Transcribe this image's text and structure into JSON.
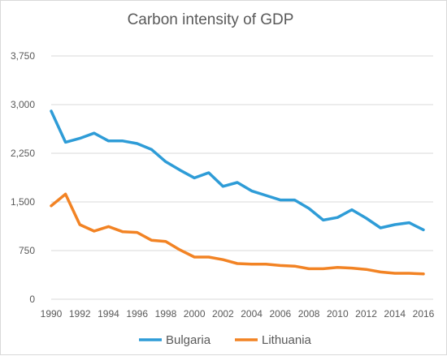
{
  "chart_data": {
    "type": "line",
    "title": "Carbon intensity of GDP",
    "xlabel": "",
    "ylabel": "",
    "x": [
      1990,
      1991,
      1992,
      1993,
      1994,
      1995,
      1996,
      1997,
      1998,
      1999,
      2000,
      2001,
      2002,
      2003,
      2004,
      2005,
      2006,
      2007,
      2008,
      2009,
      2010,
      2011,
      2012,
      2013,
      2014,
      2015,
      2016
    ],
    "x_tick_labels": [
      "1990",
      "1992",
      "1994",
      "1996",
      "1998",
      "2000",
      "2002",
      "2004",
      "2006",
      "2008",
      "2010",
      "2012",
      "2014",
      "2016"
    ],
    "x_tick_values": [
      1990,
      1992,
      1994,
      1996,
      1998,
      2000,
      2002,
      2004,
      2006,
      2008,
      2010,
      2012,
      2014,
      2016
    ],
    "y_tick_labels": [
      "0",
      "750",
      "1,500",
      "2,250",
      "3,000",
      "3,750"
    ],
    "y_tick_values": [
      0,
      750,
      1500,
      2250,
      3000,
      3750
    ],
    "ylim": [
      0,
      3750
    ],
    "xlim": [
      1990,
      2016
    ],
    "grid": true,
    "legend_position": "bottom",
    "series": [
      {
        "name": "Bulgaria",
        "color": "#2e9cd7",
        "values": [
          2900,
          2420,
          2480,
          2560,
          2440,
          2440,
          2400,
          2310,
          2120,
          1990,
          1870,
          1950,
          1740,
          1800,
          1670,
          1600,
          1530,
          1530,
          1400,
          1220,
          1260,
          1380,
          1250,
          1100,
          1150,
          1180,
          1070
        ]
      },
      {
        "name": "Lithuania",
        "color": "#f28324",
        "values": [
          1440,
          1620,
          1150,
          1050,
          1120,
          1040,
          1030,
          910,
          890,
          760,
          650,
          650,
          610,
          550,
          540,
          540,
          520,
          510,
          470,
          470,
          490,
          480,
          460,
          420,
          400,
          400,
          390
        ]
      }
    ]
  }
}
